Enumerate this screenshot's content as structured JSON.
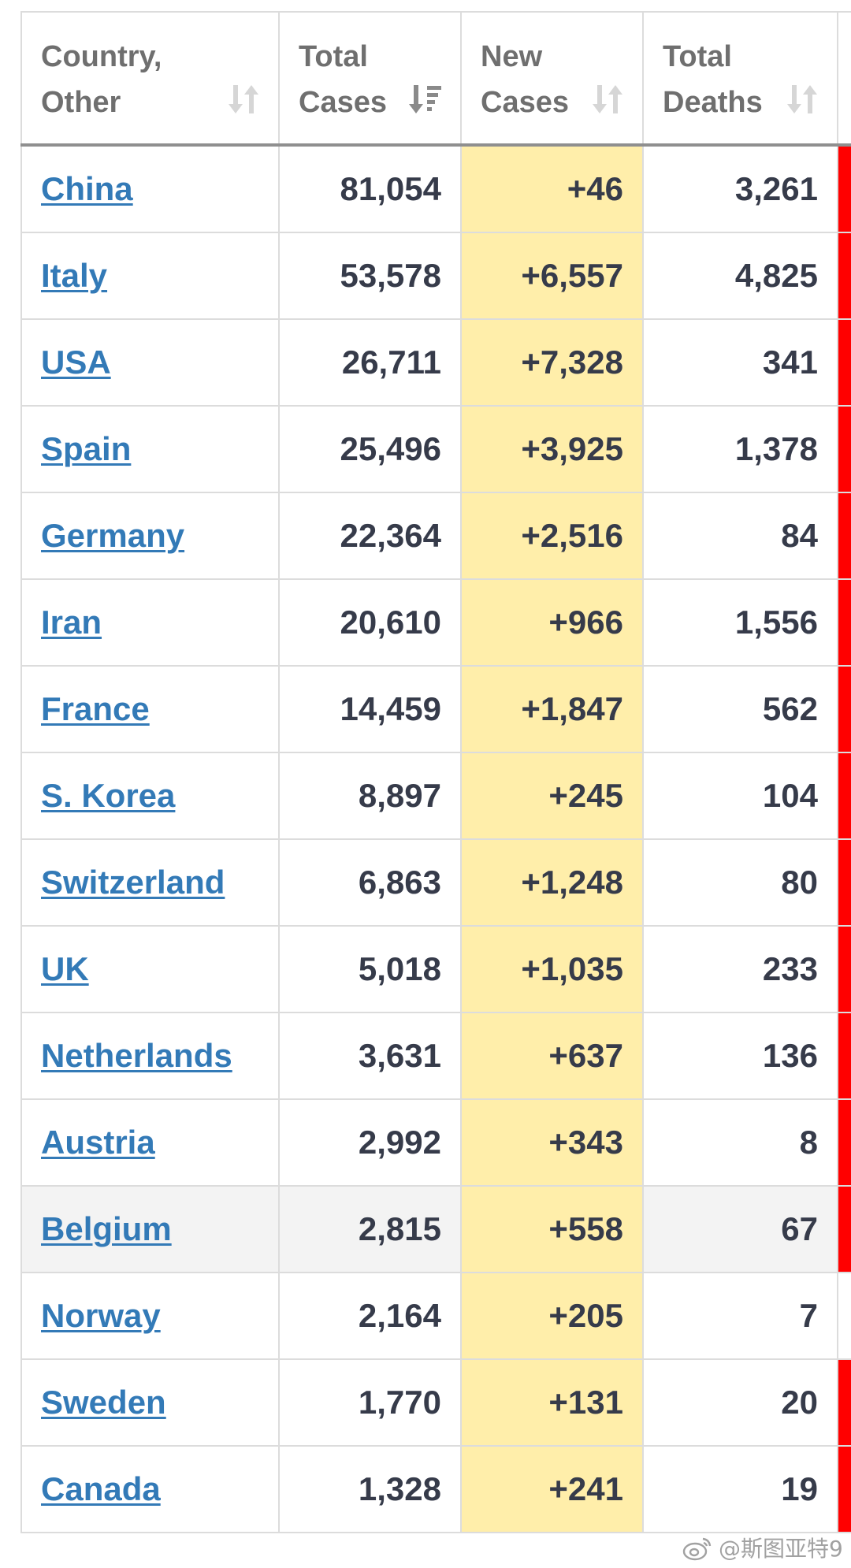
{
  "columns": {
    "country": "Country,\nOther",
    "total_cases": "Total\nCases",
    "new_cases": "New\nCases",
    "total_deaths": "Total\nDeaths"
  },
  "sort_icons": {
    "country": "sort-both-icon",
    "total_cases": "sort-descending-icon",
    "new_cases": "sort-both-icon",
    "total_deaths": "sort-both-icon"
  },
  "colors": {
    "link": "#337ab7",
    "new_cases_bg": "#ffeeaa",
    "indicator": "#ff0000",
    "highlight_row": "#f3f3f3"
  },
  "rows": [
    {
      "country": "China",
      "total_cases": "81,054",
      "new_cases": "+46",
      "total_deaths": "3,261",
      "indicator": true
    },
    {
      "country": "Italy",
      "total_cases": "53,578",
      "new_cases": "+6,557",
      "total_deaths": "4,825",
      "indicator": true
    },
    {
      "country": "USA",
      "total_cases": "26,711",
      "new_cases": "+7,328",
      "total_deaths": "341",
      "indicator": true
    },
    {
      "country": "Spain",
      "total_cases": "25,496",
      "new_cases": "+3,925",
      "total_deaths": "1,378",
      "indicator": true
    },
    {
      "country": "Germany",
      "total_cases": "22,364",
      "new_cases": "+2,516",
      "total_deaths": "84",
      "indicator": true
    },
    {
      "country": "Iran",
      "total_cases": "20,610",
      "new_cases": "+966",
      "total_deaths": "1,556",
      "indicator": true
    },
    {
      "country": "France",
      "total_cases": "14,459",
      "new_cases": "+1,847",
      "total_deaths": "562",
      "indicator": true
    },
    {
      "country": "S. Korea",
      "total_cases": "8,897",
      "new_cases": "+245",
      "total_deaths": "104",
      "indicator": true
    },
    {
      "country": "Switzerland",
      "total_cases": "6,863",
      "new_cases": "+1,248",
      "total_deaths": "80",
      "indicator": true
    },
    {
      "country": "UK",
      "total_cases": "5,018",
      "new_cases": "+1,035",
      "total_deaths": "233",
      "indicator": true
    },
    {
      "country": "Netherlands",
      "total_cases": "3,631",
      "new_cases": "+637",
      "total_deaths": "136",
      "indicator": true
    },
    {
      "country": "Austria",
      "total_cases": "2,992",
      "new_cases": "+343",
      "total_deaths": "8",
      "indicator": true
    },
    {
      "country": "Belgium",
      "total_cases": "2,815",
      "new_cases": "+558",
      "total_deaths": "67",
      "indicator": true,
      "highlighted": true
    },
    {
      "country": "Norway",
      "total_cases": "2,164",
      "new_cases": "+205",
      "total_deaths": "7",
      "indicator": false
    },
    {
      "country": "Sweden",
      "total_cases": "1,770",
      "new_cases": "+131",
      "total_deaths": "20",
      "indicator": true
    },
    {
      "country": "Canada",
      "total_cases": "1,328",
      "new_cases": "+241",
      "total_deaths": "19",
      "indicator": true
    }
  ],
  "watermark": {
    "text": "@斯图亚特9",
    "icon": "weibo-logo-icon"
  }
}
